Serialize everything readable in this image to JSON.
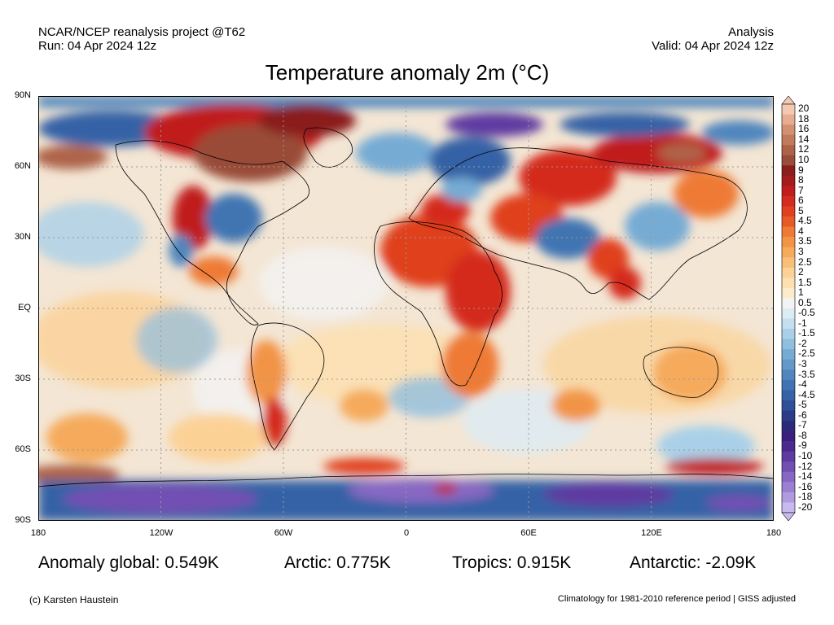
{
  "header": {
    "left_line1": "NCAR/NCEP reanalysis project @T62",
    "left_line2": "Run: 04 Apr 2024 12z",
    "right_line1": "Analysis",
    "right_line2": "Valid: 04 Apr 2024 12z"
  },
  "title": "Temperature anomaly 2m (°C)",
  "lat_labels": [
    "90N",
    "60N",
    "30N",
    "EQ",
    "30S",
    "60S",
    "90S"
  ],
  "lon_labels": [
    "180",
    "120W",
    "60W",
    "0",
    "60E",
    "120E",
    "180"
  ],
  "colorbar": {
    "labels": [
      "20",
      "18",
      "16",
      "14",
      "12",
      "10",
      "9",
      "8",
      "7",
      "6",
      "5",
      "4.5",
      "4",
      "3.5",
      "3",
      "2.5",
      "2",
      "1.5",
      "1",
      "0.5",
      "-0.5",
      "-1",
      "-1.5",
      "-2",
      "-2.5",
      "-3",
      "-3.5",
      "-4",
      "-4.5",
      "-5",
      "-6",
      "-7",
      "-8",
      "-9",
      "-10",
      "-12",
      "-14",
      "-16",
      "-18",
      "-20"
    ],
    "colors": [
      "#f3c9b1",
      "#e6ad90",
      "#d49172",
      "#c27a5d",
      "#ae6349",
      "#994c39",
      "#8a1e1e",
      "#a41c1c",
      "#c01e1e",
      "#d42a1f",
      "#e0401f",
      "#e65a26",
      "#ee7a34",
      "#f29446",
      "#f5aa5c",
      "#f8bf78",
      "#fbd196",
      "#fce0b1",
      "#fdeccc",
      "#f3f3f3",
      "#dcecf5",
      "#c4dff0",
      "#a9d0e8",
      "#8fbedf",
      "#76abd4",
      "#6299c9",
      "#4f86bd",
      "#4174b2",
      "#3662a6",
      "#2f4f98",
      "#2a3c88",
      "#2b2a7a",
      "#3a1f7e",
      "#4b2a8f",
      "#5e3aa1",
      "#7250b3",
      "#8767c3",
      "#9b80d2",
      "#b09be0",
      "#c9baee"
    ]
  },
  "stats": {
    "global": "Anomaly global: 0.549K",
    "arctic": "Arctic: 0.775K",
    "tropics": "Tropics: 0.915K",
    "antarctic": "Antarctic: -2.09K"
  },
  "footer": {
    "left": "(c) Karsten Haustein",
    "right": "Climatology for 1981-2010 reference period | GISS adjusted"
  }
}
